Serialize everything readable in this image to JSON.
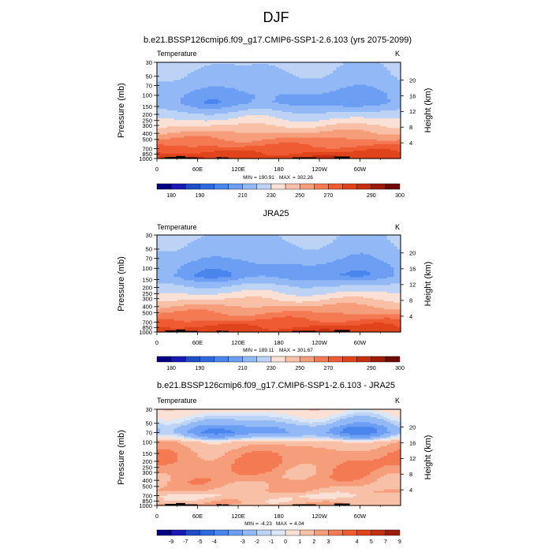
{
  "figure": {
    "main_title": "DJF",
    "min_label": "MIN",
    "max_label": "MAX"
  },
  "chart_data": [
    {
      "type": "heatmap",
      "title": "b.e21.BSSP126cmip6.f09_g17.CMIP6-SSP1-2.6.103 (yrs 2075-2099)",
      "variable": "Temperature",
      "units": "K",
      "ylabel": "Pressure (mb)",
      "y2label": "Height (km)",
      "x_ticks": [
        "0",
        "60E",
        "120E",
        "180",
        "120W",
        "60W"
      ],
      "x_tick_values": [
        0,
        60,
        120,
        180,
        240,
        300
      ],
      "xlim": [
        0,
        360
      ],
      "y_ticks": [
        "30",
        "50",
        "70",
        "100",
        "150",
        "200",
        "250",
        "300",
        "400",
        "500",
        "700",
        "850",
        "1000"
      ],
      "y_tick_values": [
        30,
        50,
        70,
        100,
        150,
        200,
        250,
        300,
        400,
        500,
        700,
        850,
        1000
      ],
      "ylim": [
        1000,
        30
      ],
      "y_scale": "log",
      "height_ticks": [
        "4",
        "8",
        "12",
        "16",
        "20"
      ],
      "height_tick_values": [
        4,
        8,
        12,
        16,
        20
      ],
      "min": "190.91",
      "max": "302.26",
      "colorbar_labels": [
        "180",
        "190",
        "210",
        "230",
        "250",
        "270",
        "290",
        "300"
      ],
      "colorbar_colors": [
        "#040083",
        "#1a19b4",
        "#1f4dc4",
        "#2e69e0",
        "#4a85ed",
        "#6c9ff3",
        "#92b9f5",
        "#bcd3f6",
        "#fbe0d5",
        "#f8c0a6",
        "#f69e7b",
        "#f47a54",
        "#ef5b33",
        "#e0441c",
        "#c42f10",
        "#9d1c06",
        "#6e0a02"
      ],
      "colorbar_levels": [
        175,
        180,
        185,
        190,
        200,
        210,
        220,
        230,
        240,
        250,
        260,
        270,
        280,
        290,
        295,
        300
      ],
      "profile_p": [
        30,
        50,
        70,
        100,
        130,
        150,
        175,
        200,
        250,
        300,
        350,
        400,
        500,
        600,
        700,
        850,
        1000
      ],
      "profile_t": [
        222,
        218,
        214,
        208,
        206,
        212,
        218,
        224,
        232,
        240,
        246,
        252,
        261,
        268,
        275,
        283,
        290
      ],
      "lat_amp": [
        3,
        3,
        3,
        4,
        5,
        4,
        3,
        3,
        3,
        3,
        3,
        3,
        3,
        3,
        3,
        3,
        4
      ]
    },
    {
      "type": "heatmap",
      "title": "JRA25",
      "variable": "Temperature",
      "units": "K",
      "ylabel": "Pressure (mb)",
      "y2label": "Height (km)",
      "x_ticks": [
        "0",
        "60E",
        "120E",
        "180",
        "120W",
        "60W"
      ],
      "x_tick_values": [
        0,
        60,
        120,
        180,
        240,
        300
      ],
      "xlim": [
        0,
        360
      ],
      "y_ticks": [
        "30",
        "50",
        "70",
        "100",
        "150",
        "200",
        "250",
        "300",
        "400",
        "500",
        "700",
        "850",
        "1000"
      ],
      "y_tick_values": [
        30,
        50,
        70,
        100,
        150,
        200,
        250,
        300,
        400,
        500,
        700,
        850,
        1000
      ],
      "ylim": [
        1000,
        30
      ],
      "y_scale": "log",
      "height_ticks": [
        "4",
        "8",
        "12",
        "16",
        "20"
      ],
      "height_tick_values": [
        4,
        8,
        12,
        16,
        20
      ],
      "min": "189.11",
      "max": "301.67",
      "colorbar_labels": [
        "180",
        "190",
        "210",
        "230",
        "250",
        "270",
        "290",
        "300"
      ],
      "colorbar_colors": [
        "#040083",
        "#1a19b4",
        "#1f4dc4",
        "#2e69e0",
        "#4a85ed",
        "#6c9ff3",
        "#92b9f5",
        "#bcd3f6",
        "#fbe0d5",
        "#f8c0a6",
        "#f69e7b",
        "#f47a54",
        "#ef5b33",
        "#e0441c",
        "#c42f10",
        "#9d1c06",
        "#6e0a02"
      ],
      "colorbar_levels": [
        175,
        180,
        185,
        190,
        200,
        210,
        220,
        230,
        240,
        250,
        260,
        270,
        280,
        290,
        295,
        300
      ],
      "profile_p": [
        30,
        50,
        70,
        100,
        130,
        150,
        175,
        200,
        250,
        300,
        350,
        400,
        500,
        600,
        700,
        850,
        1000
      ],
      "profile_t": [
        221,
        217,
        212,
        206,
        203,
        210,
        217,
        223,
        231,
        239,
        245,
        251,
        260,
        267,
        274,
        282,
        289
      ],
      "lat_amp": [
        3,
        3,
        3,
        4,
        6,
        4,
        3,
        3,
        3,
        3,
        3,
        3,
        3,
        3,
        3,
        3,
        4
      ]
    },
    {
      "type": "heatmap",
      "title": "b.e21.BSSP126cmip6.f09_g17.CMIP6-SSP1-2.6.103 - JRA25",
      "variable": "Temperature",
      "units": "K",
      "ylabel": "Pressure (mb)",
      "y2label": "Height (km)",
      "x_ticks": [
        "0",
        "60E",
        "120E",
        "180",
        "120W",
        "60W"
      ],
      "x_tick_values": [
        0,
        60,
        120,
        180,
        240,
        300
      ],
      "xlim": [
        0,
        360
      ],
      "y_ticks": [
        "30",
        "50",
        "70",
        "100",
        "150",
        "200",
        "250",
        "300",
        "400",
        "500",
        "700",
        "850",
        "1000"
      ],
      "y_tick_values": [
        30,
        50,
        70,
        100,
        150,
        200,
        250,
        300,
        400,
        500,
        700,
        850,
        1000
      ],
      "ylim": [
        1000,
        30
      ],
      "y_scale": "log",
      "height_ticks": [
        "4",
        "8",
        "12",
        "16",
        "20"
      ],
      "height_tick_values": [
        4,
        8,
        12,
        16,
        20
      ],
      "min": "-4.23",
      "max": "4.04",
      "colorbar_labels": [
        "-9",
        "-7",
        "-5",
        "-4",
        "-3",
        "-2",
        "-1",
        "0",
        "1",
        "2",
        "3",
        "4",
        "5",
        "7",
        "9"
      ],
      "colorbar_colors": [
        "#040083",
        "#1a19b4",
        "#1f4dc4",
        "#2e69e0",
        "#4a85ed",
        "#6c9ff3",
        "#92b9f5",
        "#bcd3f6",
        "#dbe7f7",
        "#fbe0d5",
        "#f8c0a6",
        "#f69e7b",
        "#f47a54",
        "#ef5b33",
        "#e0441c",
        "#c42f10",
        "#9d1c06"
      ],
      "colorbar_levels": [
        -9,
        -7,
        -5,
        -4,
        -3,
        -2,
        -1,
        -0.5,
        0,
        1,
        2,
        3,
        4,
        5,
        7,
        9
      ],
      "profile_p": [
        30,
        50,
        60,
        70,
        85,
        100,
        150,
        200,
        250,
        300,
        400,
        500,
        600,
        700,
        850,
        1000
      ],
      "profile_t": [
        0.6,
        -1.2,
        -2.2,
        -2.4,
        -1.0,
        1.5,
        2.6,
        2.9,
        2.8,
        2.6,
        2.4,
        2.1,
        1.8,
        0.9,
        1.5,
        2.0
      ],
      "lat_amp": [
        0.4,
        0.6,
        0.9,
        1.0,
        0.8,
        0.5,
        0.6,
        0.6,
        0.7,
        0.7,
        0.6,
        0.5,
        0.5,
        0.4,
        0.5,
        0.5
      ]
    }
  ]
}
